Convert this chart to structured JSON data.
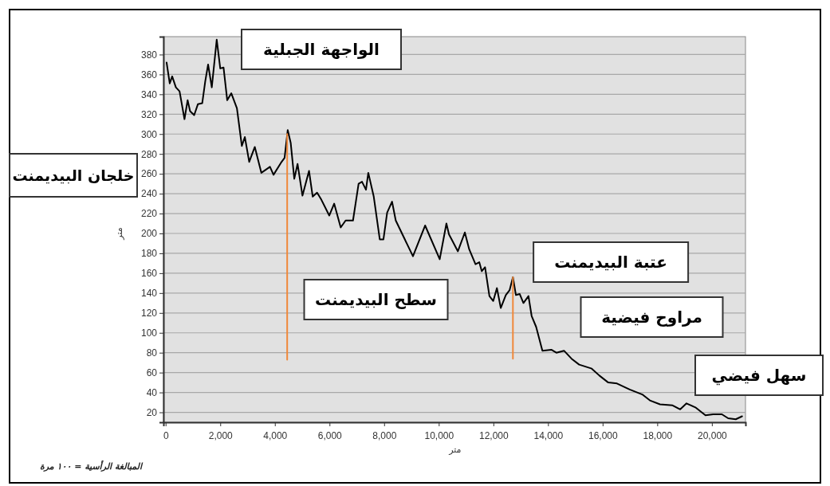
{
  "chart_data": {
    "type": "line",
    "xlabel": "متر",
    "ylabel": "متر",
    "xlim": [
      -80,
      21230
    ],
    "ylim": [
      10,
      398
    ],
    "xticks": [
      0,
      {
        "value": 2000,
        "label": "2,000"
      },
      {
        "value": 4000,
        "label": "4,000"
      },
      {
        "value": 6000,
        "label": "6,000"
      },
      {
        "value": 8000,
        "label": "8,000"
      },
      {
        "value": 10000,
        "label": "10,000"
      },
      {
        "value": 12000,
        "label": "12,000"
      },
      {
        "value": 14000,
        "label": "14,000"
      },
      {
        "value": 16000,
        "label": "16,000"
      },
      {
        "value": 18000,
        "label": "18,000"
      },
      {
        "value": 20000,
        "label": "20,000"
      }
    ],
    "yticks": [
      20,
      40,
      60,
      80,
      100,
      120,
      140,
      160,
      180,
      200,
      220,
      240,
      260,
      280,
      300,
      320,
      340,
      360,
      380
    ],
    "grid": "y",
    "series": [
      {
        "color": "#000000",
        "x": [
          35,
          150,
          240,
          375,
          510,
          690,
          805,
          895,
          1045,
          1180,
          1340,
          1450,
          1555,
          1690,
          1870,
          2000,
          2120,
          2255,
          2405,
          2610,
          2790,
          2900,
          3060,
          3265,
          3505,
          3820,
          3950,
          4220,
          4355,
          4470,
          4580,
          4710,
          4830,
          5010,
          5250,
          5385,
          5545,
          5700,
          5990,
          6170,
          6410,
          6590,
          6860,
          7065,
          7190,
          7335,
          7420,
          7620,
          7840,
          7975,
          8110,
          8290,
          8425,
          9055,
          9500,
          10035,
          10280,
          10375,
          10510,
          10700,
          10955,
          11115,
          11345,
          11485,
          11575,
          11695,
          11855,
          11995,
          12130,
          12270,
          12455,
          12595,
          12715,
          12825,
          12965,
          13100,
          13285,
          13400,
          13565,
          13795,
          14120,
          14305,
          14585,
          14860,
          15140,
          15600,
          15880,
          16205,
          16525,
          16990,
          17450,
          17730,
          18100,
          18560,
          18840,
          19070,
          19395,
          19765,
          20045,
          20365,
          20595,
          20875,
          21105
        ],
        "values": [
          372,
          351,
          358,
          347,
          343,
          315,
          334,
          323,
          319,
          330,
          331,
          353,
          370,
          347,
          395,
          366,
          367,
          334,
          341,
          326,
          288,
          297,
          272,
          287,
          261,
          267,
          259,
          271,
          276,
          304,
          291,
          255,
          270,
          238,
          263,
          237,
          241,
          234,
          218,
          230,
          206,
          213,
          213,
          250,
          252,
          244,
          261,
          237,
          194,
          194,
          221,
          232,
          213,
          177,
          208,
          174,
          210,
          199,
          192,
          182,
          201,
          184,
          169,
          171,
          162,
          166,
          137,
          132,
          145,
          125,
          138,
          143,
          156,
          138,
          139,
          130,
          137,
          117,
          106,
          82,
          83,
          80,
          82,
          74,
          68,
          64,
          57,
          50,
          49,
          43,
          38,
          32,
          28,
          27,
          23,
          29,
          25,
          17,
          18,
          18,
          14,
          13,
          16
        ]
      },
      {
        "color": "#f0883a",
        "x": [
          4450,
          4450
        ],
        "values": [
          73,
          300
        ]
      },
      {
        "color": "#f0883a",
        "x": [
          12715,
          12715
        ],
        "values": [
          74,
          156
        ]
      }
    ],
    "annotations": [
      "الواجهة الجبلية",
      "خلجان البيديمنت",
      "سطح البيديمنت",
      "عتبة البيديمنت",
      "مراوح فيضية",
      "سهل فيضي",
      "المبالغة الرأسية = ١٠٠ مرة"
    ]
  }
}
